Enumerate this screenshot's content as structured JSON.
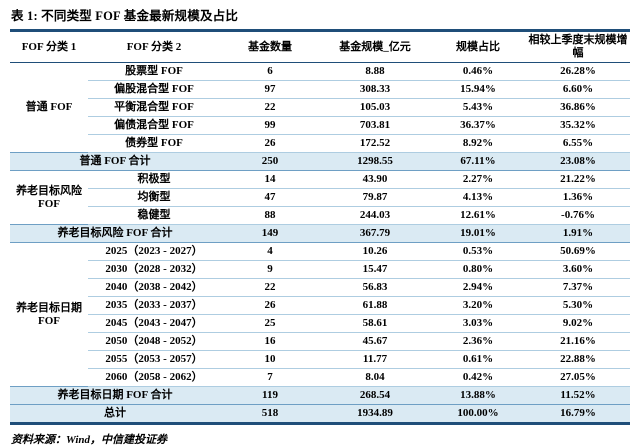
{
  "title": "表 1: 不同类型 FOF 基金最新规模及占比",
  "source_note": "资料来源：Wind，中信建投证券",
  "colors": {
    "frame_border": "#1F4E79",
    "row_separator": "#AECDE1",
    "highlight_bg": "#DAEAF3",
    "highlight_border": "#6E9FC4",
    "text": "#000000"
  },
  "table": {
    "headers": [
      "FOF 分类 1",
      "FOF 分类 2",
      "基金数量",
      "基金规模_亿元",
      "规模占比",
      "相较上季度末规模增幅"
    ],
    "groups": [
      {
        "name": "普通 FOF",
        "rows": [
          [
            "股票型 FOF",
            "6",
            "8.88",
            "0.46%",
            "26.28%"
          ],
          [
            "偏股混合型 FOF",
            "97",
            "308.33",
            "15.94%",
            "6.60%"
          ],
          [
            "平衡混合型 FOF",
            "22",
            "105.03",
            "5.43%",
            "36.86%"
          ],
          [
            "偏债混合型 FOF",
            "99",
            "703.81",
            "36.37%",
            "35.32%"
          ],
          [
            "债券型 FOF",
            "26",
            "172.52",
            "8.92%",
            "6.55%"
          ]
        ],
        "total": [
          "普通 FOF 合计",
          "250",
          "1298.55",
          "67.11%",
          "23.08%"
        ]
      },
      {
        "name": "养老目标风险 FOF",
        "rows": [
          [
            "积极型",
            "14",
            "43.90",
            "2.27%",
            "21.22%"
          ],
          [
            "均衡型",
            "47",
            "79.87",
            "4.13%",
            "1.36%"
          ],
          [
            "稳健型",
            "88",
            "244.03",
            "12.61%",
            "-0.76%"
          ]
        ],
        "total": [
          "养老目标风险 FOF 合计",
          "149",
          "367.79",
          "19.01%",
          "1.91%"
        ]
      },
      {
        "name": "养老目标日期 FOF",
        "rows": [
          [
            "2025（2023 - 2027）",
            "4",
            "10.26",
            "0.53%",
            "50.69%"
          ],
          [
            "2030（2028 - 2032）",
            "9",
            "15.47",
            "0.80%",
            "3.60%"
          ],
          [
            "2040（2038 - 2042）",
            "22",
            "56.83",
            "2.94%",
            "7.37%"
          ],
          [
            "2035（2033 - 2037）",
            "26",
            "61.88",
            "3.20%",
            "5.30%"
          ],
          [
            "2045（2043 - 2047）",
            "25",
            "58.61",
            "3.03%",
            "9.02%"
          ],
          [
            "2050（2048 - 2052）",
            "16",
            "45.67",
            "2.36%",
            "21.16%"
          ],
          [
            "2055（2053 - 2057）",
            "10",
            "11.77",
            "0.61%",
            "22.88%"
          ],
          [
            "2060（2058 - 2062）",
            "7",
            "8.04",
            "0.42%",
            "27.05%"
          ]
        ],
        "total": [
          "养老目标日期 FOF 合计",
          "119",
          "268.54",
          "13.88%",
          "11.52%"
        ]
      }
    ],
    "grand_total": [
      "总计",
      "518",
      "1934.89",
      "100.00%",
      "16.79%"
    ]
  }
}
